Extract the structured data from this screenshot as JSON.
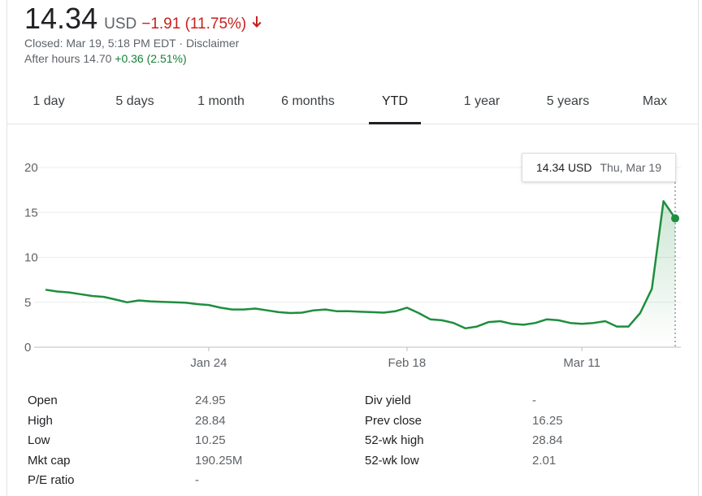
{
  "quote": {
    "price": "14.34",
    "currency": "USD",
    "change": "−1.91 (11.75%)",
    "closed_text": "Closed: Mar 19, 5:18 PM EDT · ",
    "disclaimer": "Disclaimer",
    "after_hours_label": "After hours 14.70",
    "after_hours_change": "+0.36 (2.51%)",
    "colors": {
      "down": "#c5221f",
      "up": "#188038"
    }
  },
  "tabs": [
    {
      "label": "1 day",
      "active": false
    },
    {
      "label": "5 days",
      "active": false
    },
    {
      "label": "1 month",
      "active": false
    },
    {
      "label": "6 months",
      "active": false
    },
    {
      "label": "YTD",
      "active": true
    },
    {
      "label": "1 year",
      "active": false
    },
    {
      "label": "5 years",
      "active": false
    },
    {
      "label": "Max",
      "active": false
    }
  ],
  "tooltip": {
    "price": "14.34 USD",
    "date": "Thu, Mar 19"
  },
  "chart_data": {
    "type": "line",
    "ylim": [
      0,
      20
    ],
    "y_ticks": [
      "0",
      "5",
      "10",
      "15",
      "20"
    ],
    "x_ticks": [
      {
        "label": "Jan 24",
        "index": 14
      },
      {
        "label": "Feb 18",
        "index": 31
      },
      {
        "label": "Mar 11",
        "index": 46
      }
    ],
    "line_color": "#1e8e3e",
    "series": [
      {
        "values": [
          6.4,
          6.2,
          6.1,
          5.9,
          5.7,
          5.6,
          5.3,
          5.0,
          5.2,
          5.1,
          5.05,
          5.0,
          4.95,
          4.8,
          4.7,
          4.4,
          4.2,
          4.2,
          4.3,
          4.1,
          3.9,
          3.8,
          3.85,
          4.1,
          4.2,
          4.0,
          4.0,
          3.95,
          3.9,
          3.85,
          4.0,
          4.4,
          3.8,
          3.1,
          3.0,
          2.7,
          2.1,
          2.3,
          2.8,
          2.9,
          2.6,
          2.5,
          2.7,
          3.1,
          3.0,
          2.7,
          2.6,
          2.7,
          2.9,
          2.3,
          2.3,
          3.8,
          6.5,
          16.25,
          14.34
        ]
      }
    ]
  },
  "stats": [
    {
      "label": "Open",
      "value": "24.95"
    },
    {
      "label": "High",
      "value": "28.84"
    },
    {
      "label": "Low",
      "value": "10.25"
    },
    {
      "label": "Mkt cap",
      "value": "190.25M"
    },
    {
      "label": "P/E ratio",
      "value": "-"
    },
    {
      "label": "Div yield",
      "value": "-"
    },
    {
      "label": "Prev close",
      "value": "16.25"
    },
    {
      "label": "52-wk high",
      "value": "28.84"
    },
    {
      "label": "52-wk low",
      "value": "2.01"
    }
  ]
}
